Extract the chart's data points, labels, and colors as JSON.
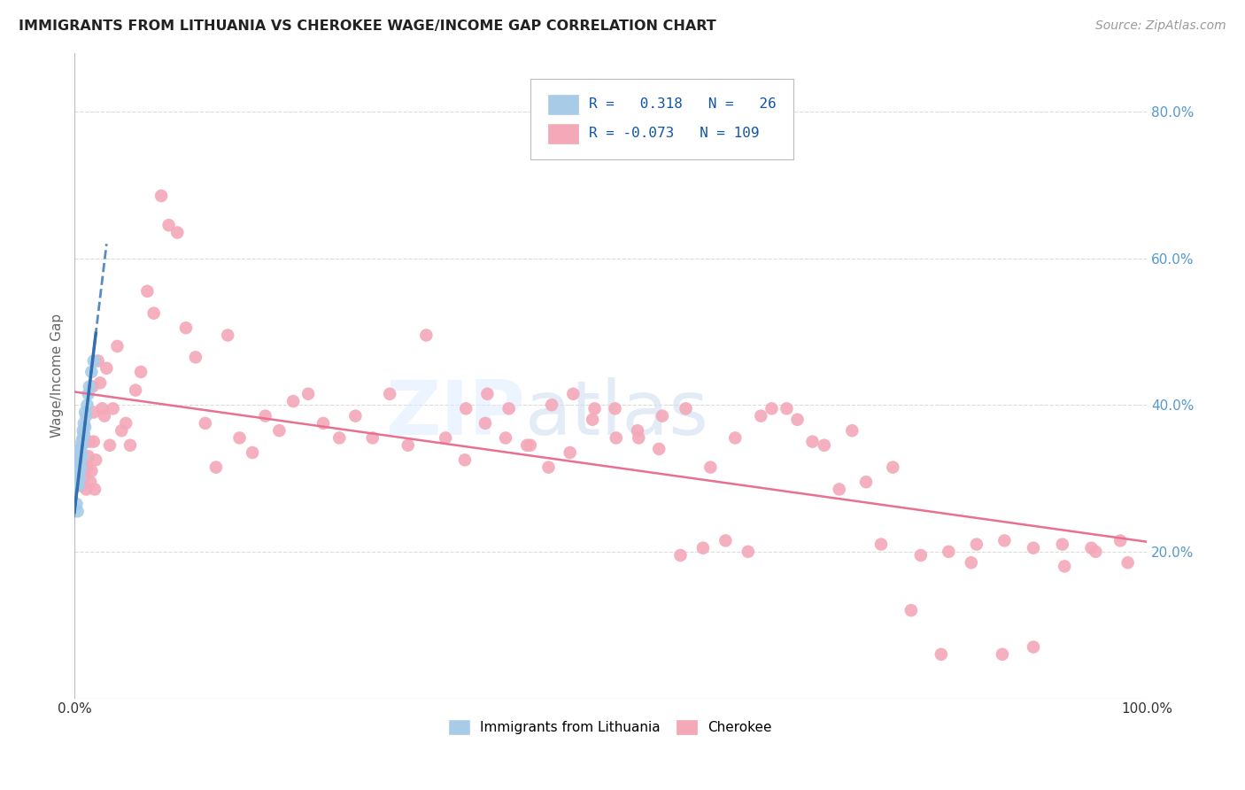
{
  "title": "IMMIGRANTS FROM LITHUANIA VS CHEROKEE WAGE/INCOME GAP CORRELATION CHART",
  "source": "Source: ZipAtlas.com",
  "ylabel": "Wage/Income Gap",
  "xlim": [
    0.0,
    1.0
  ],
  "ylim": [
    0.0,
    0.88
  ],
  "yticks": [
    0.2,
    0.4,
    0.6,
    0.8
  ],
  "yticklabels": [
    "20.0%",
    "40.0%",
    "60.0%",
    "80.0%"
  ],
  "xtick_positions": [
    0.0,
    1.0
  ],
  "xticklabels": [
    "0.0%",
    "100.0%"
  ],
  "grid_color": "#cccccc",
  "background_color": "#ffffff",
  "legend_entries": [
    "Immigrants from Lithuania",
    "Cherokee"
  ],
  "blue_R": 0.318,
  "blue_N": 26,
  "pink_R": -0.073,
  "pink_N": 109,
  "blue_color": "#a8cce8",
  "pink_color": "#f4a8b8",
  "blue_line_color": "#3070b0",
  "pink_line_color": "#e87090",
  "blue_scatter_x": [
    0.002,
    0.003,
    0.003,
    0.004,
    0.004,
    0.005,
    0.005,
    0.005,
    0.006,
    0.006,
    0.006,
    0.007,
    0.007,
    0.007,
    0.008,
    0.008,
    0.009,
    0.009,
    0.01,
    0.01,
    0.011,
    0.012,
    0.013,
    0.014,
    0.016,
    0.018
  ],
  "blue_scatter_y": [
    0.265,
    0.255,
    0.31,
    0.29,
    0.32,
    0.3,
    0.31,
    0.335,
    0.315,
    0.325,
    0.34,
    0.33,
    0.345,
    0.35,
    0.355,
    0.365,
    0.36,
    0.375,
    0.37,
    0.39,
    0.385,
    0.4,
    0.415,
    0.425,
    0.445,
    0.46
  ],
  "pink_scatter_x": [
    0.003,
    0.005,
    0.006,
    0.007,
    0.008,
    0.009,
    0.01,
    0.011,
    0.012,
    0.013,
    0.014,
    0.015,
    0.016,
    0.017,
    0.018,
    0.019,
    0.02,
    0.022,
    0.024,
    0.026,
    0.028,
    0.03,
    0.033,
    0.036,
    0.04,
    0.044,
    0.048,
    0.052,
    0.057,
    0.062,
    0.068,
    0.074,
    0.081,
    0.088,
    0.096,
    0.104,
    0.113,
    0.122,
    0.132,
    0.143,
    0.154,
    0.166,
    0.178,
    0.191,
    0.204,
    0.218,
    0.232,
    0.247,
    0.262,
    0.278,
    0.294,
    0.311,
    0.328,
    0.346,
    0.364,
    0.383,
    0.402,
    0.422,
    0.442,
    0.462,
    0.483,
    0.504,
    0.526,
    0.548,
    0.57,
    0.593,
    0.616,
    0.64,
    0.664,
    0.688,
    0.713,
    0.738,
    0.763,
    0.789,
    0.815,
    0.841,
    0.867,
    0.894,
    0.921,
    0.948,
    0.975,
    0.365,
    0.385,
    0.405,
    0.425,
    0.445,
    0.465,
    0.485,
    0.505,
    0.525,
    0.545,
    0.565,
    0.586,
    0.607,
    0.628,
    0.65,
    0.674,
    0.699,
    0.725,
    0.752,
    0.78,
    0.808,
    0.836,
    0.865,
    0.894,
    0.923,
    0.952,
    0.982,
    0.018
  ],
  "pink_scatter_y": [
    0.305,
    0.295,
    0.315,
    0.29,
    0.32,
    0.3,
    0.31,
    0.285,
    0.315,
    0.33,
    0.35,
    0.295,
    0.31,
    0.425,
    0.39,
    0.285,
    0.325,
    0.46,
    0.43,
    0.395,
    0.385,
    0.45,
    0.345,
    0.395,
    0.48,
    0.365,
    0.375,
    0.345,
    0.42,
    0.445,
    0.555,
    0.525,
    0.685,
    0.645,
    0.635,
    0.505,
    0.465,
    0.375,
    0.315,
    0.495,
    0.355,
    0.335,
    0.385,
    0.365,
    0.405,
    0.415,
    0.375,
    0.355,
    0.385,
    0.355,
    0.415,
    0.345,
    0.495,
    0.355,
    0.325,
    0.375,
    0.355,
    0.345,
    0.315,
    0.335,
    0.38,
    0.395,
    0.355,
    0.385,
    0.395,
    0.315,
    0.355,
    0.385,
    0.395,
    0.35,
    0.285,
    0.295,
    0.315,
    0.195,
    0.2,
    0.21,
    0.215,
    0.205,
    0.21,
    0.205,
    0.215,
    0.395,
    0.415,
    0.395,
    0.345,
    0.4,
    0.415,
    0.395,
    0.355,
    0.365,
    0.34,
    0.195,
    0.205,
    0.215,
    0.2,
    0.395,
    0.38,
    0.345,
    0.365,
    0.21,
    0.12,
    0.06,
    0.185,
    0.06,
    0.07,
    0.18,
    0.2,
    0.185,
    0.35
  ]
}
